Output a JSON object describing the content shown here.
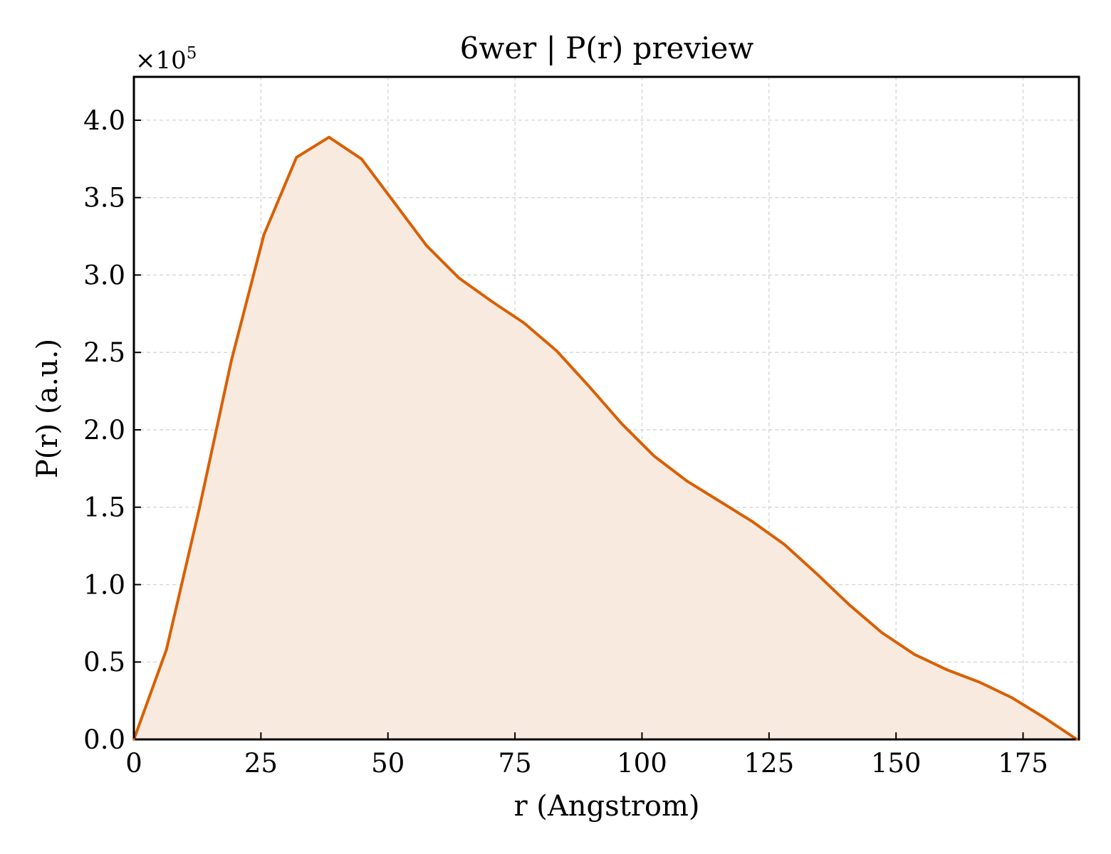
{
  "chart_data": {
    "type": "area",
    "title": "6wer | P(r) preview",
    "xlabel": "r (Angstrom)",
    "ylabel": "P(r) (a.u.)",
    "y_offset_text": {
      "base": "×10",
      "exponent": "5"
    },
    "xlim": [
      0,
      186
    ],
    "ylim": [
      0,
      4.28
    ],
    "x_ticks": [
      0,
      25,
      50,
      75,
      100,
      125,
      150,
      175
    ],
    "y_ticks": [
      "0.0",
      "0.5",
      "1.0",
      "1.5",
      "2.0",
      "2.5",
      "3.0",
      "3.5",
      "4.0"
    ],
    "grid": true,
    "line_color": "#d95f02",
    "fill_color": "#f9eadf",
    "series": [
      {
        "x": [
          0,
          6.4,
          12.8,
          19.2,
          25.6,
          32.0,
          38.4,
          44.8,
          51.2,
          57.6,
          64.0,
          70.4,
          76.8,
          83.2,
          89.6,
          96.0,
          102.4,
          108.8,
          115.2,
          121.6,
          128.0,
          134.4,
          140.8,
          147.2,
          153.6,
          160.0,
          166.4,
          172.8,
          179.2,
          185.6
        ],
        "y": [
          0.0,
          0.58,
          1.48,
          2.45,
          3.26,
          3.76,
          3.89,
          3.75,
          3.47,
          3.19,
          2.98,
          2.83,
          2.69,
          2.51,
          2.28,
          2.04,
          1.83,
          1.67,
          1.54,
          1.41,
          1.26,
          1.07,
          0.87,
          0.69,
          0.55,
          0.45,
          0.37,
          0.27,
          0.14,
          0.0
        ]
      }
    ]
  }
}
